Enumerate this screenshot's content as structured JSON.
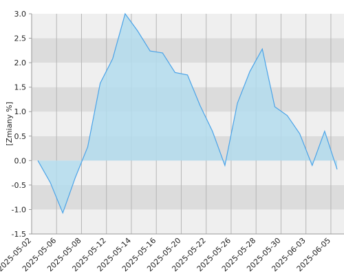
{
  "chart_data": {
    "type": "area",
    "y_label": "[Zmiany %]",
    "categories": [
      "2025-05-02",
      null,
      "2025-05-06",
      null,
      "2025-05-08",
      null,
      "2025-05-12",
      null,
      "2025-05-14",
      null,
      "2025-05-16",
      null,
      "2025-05-20",
      null,
      "2025-05-22",
      null,
      "2025-05-26",
      null,
      "2025-05-28",
      null,
      "2025-05-30",
      null,
      "2025-06-03",
      null,
      "2025-06-05"
    ],
    "values": [
      0,
      -0.45,
      -1.07,
      -0.35,
      0.28,
      1.58,
      2.08,
      3.0,
      2.65,
      2.24,
      2.2,
      1.8,
      1.75,
      1.13,
      0.6,
      -0.1,
      1.17,
      1.82,
      2.28,
      1.1,
      0.92,
      0.55,
      -0.1,
      0.6,
      -0.18
    ],
    "color": "#4aa3e8",
    "fill": "#b3dced",
    "ylim": [
      -1.5,
      3.0
    ],
    "yticks": [
      {
        "value": -1.5,
        "label": "-1.5"
      },
      {
        "value": -1.0,
        "label": "-1.0"
      },
      -0.5,
      {
        "value": 0.0,
        "label": "0.0"
      },
      0.5,
      {
        "value": 1.0,
        "label": "1.0"
      },
      1.5,
      {
        "value": 2.0,
        "label": "2.0"
      },
      2.5,
      {
        "value": 3.0,
        "label": "3.0"
      }
    ],
    "grid": true,
    "band_colors": [
      "#efefef",
      "#dcdcdc"
    ]
  }
}
